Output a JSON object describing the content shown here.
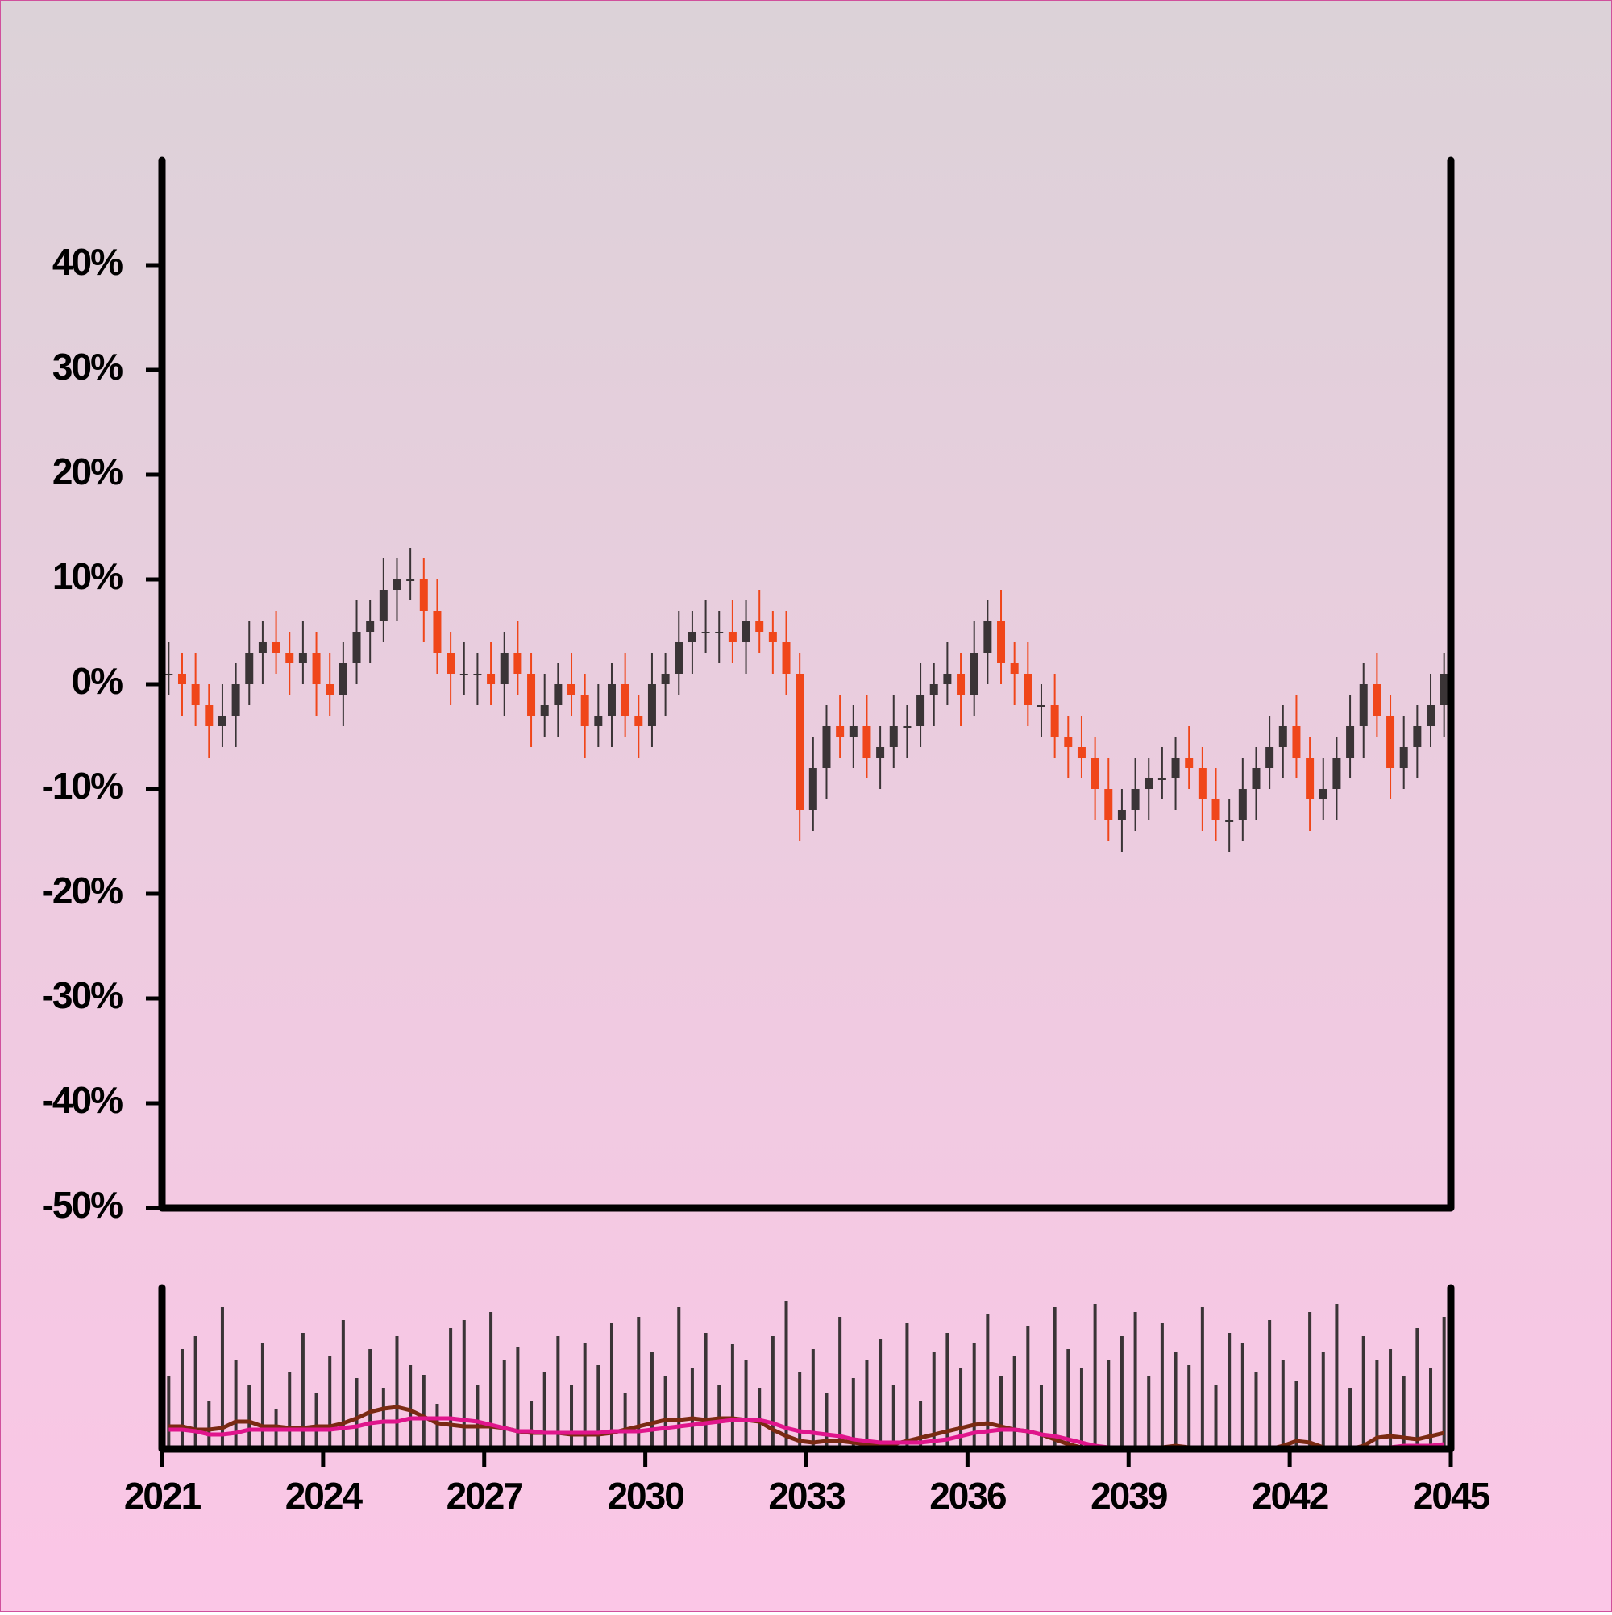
{
  "chart_data": {
    "type": "candlestick",
    "x": [
      2021.125,
      2021.375,
      2021.625,
      2021.875,
      2022.125,
      2022.375,
      2022.625,
      2022.875,
      2023.125,
      2023.375,
      2023.625,
      2023.875,
      2024.125,
      2024.375,
      2024.625,
      2024.875,
      2025.125,
      2025.375,
      2025.625,
      2025.875,
      2026.125,
      2026.375,
      2026.625,
      2026.875,
      2027.125,
      2027.375,
      2027.625,
      2027.875,
      2028.125,
      2028.375,
      2028.625,
      2028.875,
      2029.125,
      2029.375,
      2029.625,
      2029.875,
      2030.125,
      2030.375,
      2030.625,
      2030.875,
      2031.125,
      2031.375,
      2031.625,
      2031.875,
      2032.125,
      2032.375,
      2032.625,
      2032.875,
      2033.125,
      2033.375,
      2033.625,
      2033.875,
      2034.125,
      2034.375,
      2034.625,
      2034.875,
      2035.125,
      2035.375,
      2035.625,
      2035.875,
      2036.125,
      2036.375,
      2036.625,
      2036.875,
      2037.125,
      2037.375,
      2037.625,
      2037.875,
      2038.125,
      2038.375,
      2038.625,
      2038.875,
      2039.125,
      2039.375,
      2039.625,
      2039.875,
      2040.125,
      2040.375,
      2040.625,
      2040.875,
      2041.125,
      2041.375,
      2041.625,
      2041.875,
      2042.125,
      2042.375,
      2042.625,
      2042.875,
      2043.125,
      2043.375,
      2043.625,
      2043.875,
      2044.125,
      2044.375,
      2044.625,
      2044.875
    ],
    "open": [
      1,
      1,
      0,
      -2,
      -4,
      -3,
      0,
      3,
      4,
      3,
      2,
      3,
      0,
      -1,
      2,
      5,
      6,
      9,
      10,
      10,
      7,
      3,
      1,
      1,
      1,
      0,
      3,
      1,
      -3,
      -2,
      0,
      -1,
      -4,
      -3,
      0,
      -3,
      -4,
      0,
      1,
      4,
      5,
      5,
      5,
      4,
      6,
      5,
      4,
      1,
      -12,
      -8,
      -4,
      -5,
      -4,
      -7,
      -6,
      -4,
      -4,
      -1,
      0,
      1,
      -1,
      3,
      6,
      2,
      1,
      -2,
      -2,
      -5,
      -6,
      -7,
      -10,
      -13,
      -12,
      -10,
      -9,
      -9,
      -7,
      -8,
      -11,
      -13,
      -13,
      -10,
      -8,
      -6,
      -4,
      -7,
      -11,
      -10,
      -7,
      -4,
      0,
      -3,
      -8,
      -6,
      -4,
      -2
    ],
    "high": [
      4,
      3,
      3,
      0,
      0,
      2,
      6,
      6,
      7,
      5,
      6,
      5,
      3,
      4,
      8,
      8,
      12,
      12,
      13,
      12,
      10,
      5,
      4,
      3,
      4,
      5,
      6,
      3,
      1,
      2,
      3,
      1,
      0,
      2,
      3,
      -1,
      3,
      3,
      7,
      7,
      8,
      7,
      8,
      8,
      9,
      7,
      7,
      3,
      -5,
      -2,
      -1,
      -2,
      -1,
      -4,
      -1,
      -2,
      2,
      2,
      4,
      3,
      6,
      8,
      9,
      4,
      4,
      0,
      1,
      -3,
      -3,
      -5,
      -7,
      -10,
      -7,
      -7,
      -6,
      -5,
      -4,
      -6,
      -8,
      -11,
      -7,
      -6,
      -3,
      -2,
      -1,
      -5,
      -7,
      -5,
      -1,
      2,
      3,
      -1,
      -3,
      -2,
      1,
      3
    ],
    "low": [
      -1,
      -3,
      -4,
      -7,
      -6,
      -6,
      -2,
      0,
      1,
      -1,
      0,
      -3,
      -3,
      -4,
      0,
      2,
      4,
      6,
      8,
      4,
      1,
      -2,
      -1,
      -2,
      -2,
      -3,
      -1,
      -6,
      -5,
      -5,
      -3,
      -7,
      -6,
      -6,
      -5,
      -7,
      -6,
      -3,
      -1,
      1,
      3,
      2,
      2,
      1,
      3,
      1,
      -1,
      -15,
      -14,
      -11,
      -7,
      -8,
      -9,
      -10,
      -8,
      -7,
      -6,
      -4,
      -2,
      -4,
      -3,
      0,
      0,
      -2,
      -4,
      -5,
      -7,
      -9,
      -9,
      -13,
      -15,
      -16,
      -14,
      -13,
      -11,
      -12,
      -10,
      -14,
      -15,
      -16,
      -15,
      -13,
      -10,
      -9,
      -9,
      -14,
      -13,
      -13,
      -9,
      -7,
      -5,
      -11,
      -10,
      -9,
      -6,
      -5
    ],
    "close": [
      1,
      0,
      -2,
      -4,
      -3,
      0,
      3,
      4,
      3,
      2,
      3,
      0,
      -1,
      2,
      5,
      6,
      9,
      10,
      10,
      7,
      3,
      1,
      1,
      1,
      0,
      3,
      1,
      -3,
      -2,
      0,
      -1,
      -4,
      -3,
      0,
      -3,
      -4,
      0,
      1,
      4,
      5,
      5,
      5,
      4,
      6,
      5,
      4,
      1,
      -12,
      -8,
      -4,
      -5,
      -4,
      -7,
      -6,
      -4,
      -4,
      -1,
      0,
      1,
      -1,
      3,
      6,
      2,
      1,
      -2,
      -2,
      -5,
      -6,
      -7,
      -10,
      -13,
      -12,
      -10,
      -9,
      -9,
      -7,
      -8,
      -11,
      -13,
      -13,
      -10,
      -8,
      -6,
      -4,
      -7,
      -11,
      -10,
      -7,
      -4,
      0,
      -3,
      -8,
      -6,
      -4,
      -2,
      1
    ],
    "up_color": "#3a3436",
    "down_color": "#f0461a",
    "xlim": [
      2021,
      2045
    ],
    "xticks": [
      2021,
      2024,
      2027,
      2030,
      2033,
      2036,
      2039,
      2042,
      2045
    ],
    "ylim": [
      -50,
      50
    ],
    "yticks": [
      {
        "value": -50,
        "label": "-50%"
      },
      {
        "value": -40,
        "label": "-40%"
      },
      {
        "value": -30,
        "label": "-30%"
      },
      {
        "value": -20,
        "label": "-20%"
      },
      {
        "value": -10,
        "label": "-10%"
      },
      {
        "value": 0,
        "label": "0%"
      },
      {
        "value": 10,
        "label": "10%"
      },
      {
        "value": 20,
        "label": "20%"
      },
      {
        "value": 30,
        "label": "30%"
      },
      {
        "value": 40,
        "label": "40%"
      }
    ],
    "volume": {
      "color": "#3a3436",
      "ylim": [
        0,
        100
      ],
      "values": [
        45,
        62,
        70,
        30,
        88,
        55,
        40,
        66,
        25,
        48,
        72,
        35,
        58,
        80,
        44,
        62,
        38,
        70,
        52,
        46,
        28,
        75,
        80,
        40,
        85,
        55,
        63,
        30,
        48,
        70,
        40,
        66,
        52,
        78,
        35,
        82,
        60,
        45,
        88,
        50,
        72,
        40,
        65,
        55,
        38,
        70,
        92,
        48,
        62,
        35,
        82,
        44,
        55,
        68,
        40,
        78,
        30,
        60,
        72,
        50,
        66,
        84,
        45,
        58,
        76,
        40,
        88,
        62,
        50,
        90,
        55,
        70,
        85,
        45,
        78,
        60,
        52,
        88,
        40,
        72,
        66,
        48,
        80,
        55,
        42,
        85,
        60,
        90,
        38,
        70,
        55,
        62,
        45,
        75,
        50,
        82
      ]
    },
    "volume_ma": [
      {
        "color": "#7a2a12",
        "values": [
          14,
          14,
          12,
          12,
          13,
          17,
          17,
          14,
          14,
          13,
          13,
          14,
          14,
          16,
          19,
          23,
          25,
          26,
          24,
          20,
          16,
          15,
          14,
          14,
          14,
          13,
          11,
          10,
          10,
          10,
          9,
          9,
          9,
          10,
          12,
          14,
          16,
          18,
          18,
          19,
          18,
          19,
          19,
          18,
          17,
          12,
          8,
          5,
          4,
          5,
          5,
          4,
          3,
          3,
          3,
          5,
          7,
          9,
          11,
          13,
          15,
          16,
          14,
          12,
          11,
          9,
          6,
          3,
          1,
          0,
          0,
          0,
          0,
          0,
          1,
          2,
          1,
          0,
          0,
          0,
          0,
          0,
          0,
          2,
          5,
          4,
          1,
          0,
          0,
          2,
          7,
          8,
          7,
          6,
          8,
          10
        ]
      },
      {
        "color": "#e0158c",
        "values": [
          12,
          12,
          11,
          9,
          9,
          10,
          12,
          12,
          12,
          12,
          12,
          12,
          12,
          13,
          14,
          16,
          17,
          17,
          19,
          19,
          19,
          19,
          18,
          17,
          15,
          13,
          11,
          11,
          10,
          10,
          10,
          10,
          10,
          11,
          11,
          11,
          12,
          13,
          14,
          15,
          16,
          17,
          18,
          18,
          18,
          16,
          13,
          11,
          10,
          9,
          8,
          6,
          5,
          4,
          4,
          4,
          4,
          5,
          6,
          8,
          10,
          11,
          12,
          12,
          11,
          9,
          8,
          6,
          4,
          2,
          1,
          0,
          0,
          0,
          0,
          0,
          0,
          0,
          0,
          0,
          0,
          0,
          0,
          0,
          0,
          0,
          0,
          0,
          0,
          0,
          1,
          1,
          2,
          2,
          2,
          3
        ]
      }
    ]
  }
}
